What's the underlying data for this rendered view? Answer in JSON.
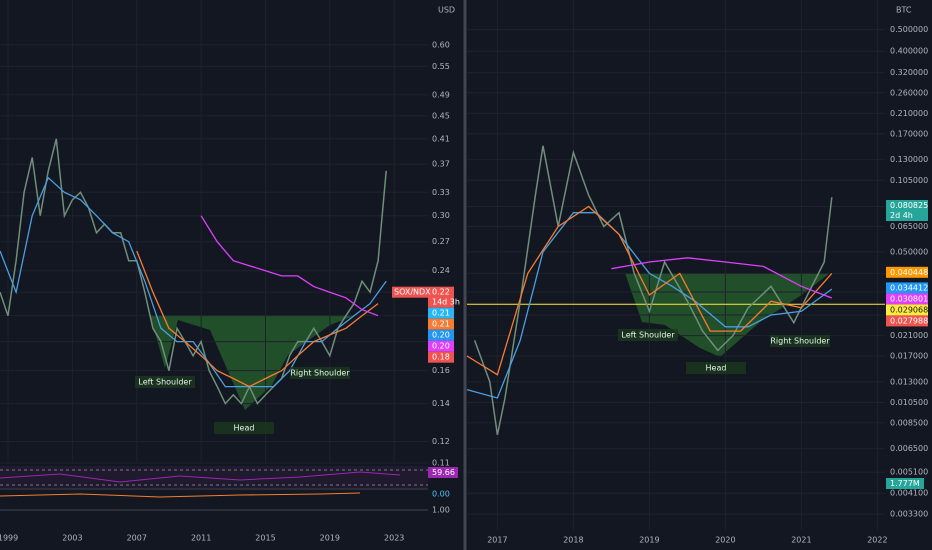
{
  "chart_data": [
    {
      "type": "line",
      "log_scale": true,
      "currency": "USD",
      "xlim": [
        1998.5,
        2025.1
      ],
      "ylim": [
        0.11,
        0.72
      ],
      "xticks": [
        1999,
        2003,
        2007,
        2011,
        2015,
        2019,
        2023
      ],
      "yticks": [
        0.11,
        0.12,
        0.14,
        0.16,
        0.18,
        {
          "value": 0.2,
          "label": "0.20"
        },
        0.22,
        0.24,
        0.27,
        {
          "value": 0.3,
          "label": "0.30"
        },
        0.33,
        0.37,
        0.41,
        0.45,
        0.49,
        0.55,
        {
          "value": 0.6,
          "label": "0.60"
        }
      ],
      "annotations": [
        "Left Shoulder",
        "Head",
        "Right Shoulder"
      ],
      "series": [
        {
          "color": "#6f8f7a",
          "x": [
            1998.5,
            1999,
            1999.5,
            2000,
            2000.5,
            2001,
            2001.5,
            2002,
            2002.5,
            2003,
            2003.5,
            2004,
            2004.5,
            2005,
            2005.5,
            2006,
            2006.5,
            2007,
            2007.5,
            2008,
            2008.5,
            2009,
            2009.5,
            2010,
            2010.5,
            2011,
            2011.5,
            2012,
            2012.5,
            2013,
            2013.5,
            2014,
            2014.5,
            2015,
            2015.5,
            2016,
            2016.5,
            2017,
            2017.5,
            2018,
            2018.5,
            2019,
            2019.5,
            2020,
            2020.5,
            2021,
            2021.5,
            2022,
            2022.5
          ],
          "values": [
            0.22,
            0.2,
            0.25,
            0.33,
            0.38,
            0.3,
            0.36,
            0.41,
            0.3,
            0.32,
            0.33,
            0.31,
            0.28,
            0.29,
            0.28,
            0.28,
            0.25,
            0.25,
            0.22,
            0.19,
            0.18,
            0.16,
            0.19,
            0.18,
            0.17,
            0.18,
            0.16,
            0.15,
            0.14,
            0.145,
            0.14,
            0.15,
            0.14,
            0.145,
            0.15,
            0.155,
            0.17,
            0.18,
            0.18,
            0.19,
            0.18,
            0.17,
            0.19,
            0.2,
            0.21,
            0.23,
            0.22,
            0.25,
            0.36
          ]
        },
        {
          "color": "#4a9fe0",
          "x": [
            1998.5,
            1999.5,
            2000.5,
            2001.5,
            2002.5,
            2003.5,
            2004.5,
            2005.5,
            2006.5,
            2007.5,
            2008.5,
            2009.5,
            2010.5,
            2011.5,
            2012.5,
            2013.5,
            2014.5,
            2015.5,
            2016.5,
            2017.5,
            2018.5,
            2019.5,
            2020.5,
            2021.5,
            2022.5
          ],
          "values": [
            0.26,
            0.22,
            0.3,
            0.35,
            0.33,
            0.32,
            0.3,
            0.28,
            0.27,
            0.23,
            0.19,
            0.18,
            0.18,
            0.165,
            0.15,
            0.15,
            0.15,
            0.15,
            0.16,
            0.18,
            0.18,
            0.19,
            0.2,
            0.21,
            0.23
          ]
        },
        {
          "color": "#f57c32",
          "x": [
            2007,
            2008,
            2009,
            2010,
            2011,
            2012,
            2013,
            2014,
            2015,
            2016,
            2017,
            2018,
            2019,
            2020,
            2021,
            2022
          ],
          "values": [
            0.26,
            0.22,
            0.19,
            0.18,
            0.17,
            0.16,
            0.155,
            0.15,
            0.155,
            0.16,
            0.17,
            0.18,
            0.185,
            0.19,
            0.2,
            0.21
          ]
        },
        {
          "color": "#e040fb",
          "x": [
            2011,
            2012,
            2013,
            2014,
            2015,
            2016,
            2017,
            2018,
            2019,
            2020,
            2021,
            2022
          ],
          "values": [
            0.3,
            0.27,
            0.25,
            0.245,
            0.24,
            0.235,
            0.235,
            0.225,
            0.22,
            0.215,
            0.205,
            0.2
          ]
        }
      ],
      "tags": [
        {
          "value": 0.22,
          "label": "0.22",
          "color": "#ef5350",
          "name": "SOX/NDX",
          "sublabel": "14d 3h"
        },
        {
          "value": 0.21,
          "label": "0.21",
          "color": "#29b6f6"
        },
        {
          "value": 0.21,
          "label": "0.21",
          "color": "#f57c32"
        },
        {
          "value": 0.2,
          "label": "0.20",
          "color": "#2196f3"
        },
        {
          "value": 0.2,
          "label": "0.20",
          "color": "#e040fb"
        },
        {
          "value": 0.18,
          "label": "0.18",
          "color": "#ef5350"
        }
      ],
      "panes": {
        "rsi": "59.66",
        "macd": "0.00",
        "tick": "1.00"
      }
    },
    {
      "type": "line",
      "log_scale": true,
      "currency": "BTC",
      "xlim": [
        2016.6,
        2022.1
      ],
      "ylim": [
        0.0028,
        0.68
      ],
      "xticks": [
        2017,
        2018,
        2019,
        2020,
        2021,
        2022
      ],
      "yticks": [
        {
          "value": 0.0033,
          "label": "0.003300"
        },
        {
          "value": 0.0041,
          "label": "0.004100"
        },
        {
          "value": 0.0051,
          "label": "0.005100"
        },
        {
          "value": 0.0065,
          "label": "0.006500"
        },
        {
          "value": 0.0085,
          "label": "0.008500"
        },
        {
          "value": 0.0105,
          "label": "0.010500"
        },
        {
          "value": 0.013,
          "label": "0.013000"
        },
        {
          "value": 0.017,
          "label": "0.017000"
        },
        {
          "value": 0.021,
          "label": "0.021000"
        },
        {
          "value": 0.026,
          "label": "0.026000"
        },
        {
          "value": 0.033,
          "label": "0.033000"
        },
        {
          "value": 0.04,
          "label": "0.040000"
        },
        {
          "value": 0.05,
          "label": "0.050000"
        },
        {
          "value": 0.065,
          "label": "0.065000"
        },
        {
          "value": 0.08,
          "label": "0.080000"
        },
        {
          "value": 0.105,
          "label": "0.105000"
        },
        {
          "value": 0.13,
          "label": "0.130000"
        },
        {
          "value": 0.17,
          "label": "0.170000"
        },
        {
          "value": 0.21,
          "label": "0.210000"
        },
        {
          "value": 0.26,
          "label": "0.260000"
        },
        {
          "value": 0.32,
          "label": "0.320000"
        },
        {
          "value": 0.4,
          "label": "0.400000"
        },
        {
          "value": 0.5,
          "label": "0.500000"
        }
      ],
      "annotations": [
        "Left Shoulder",
        "Head",
        "Right Shoulder"
      ],
      "series": [
        {
          "color": "#6f8f7a",
          "x": [
            2016.7,
            2016.9,
            2017,
            2017.1,
            2017.3,
            2017.5,
            2017.6,
            2017.8,
            2018,
            2018.2,
            2018.4,
            2018.6,
            2018.8,
            2019,
            2019.2,
            2019.5,
            2019.7,
            2019.9,
            2020.1,
            2020.3,
            2020.6,
            2020.9,
            2021.1,
            2021.3,
            2021.4
          ],
          "values": [
            0.02,
            0.013,
            0.0075,
            0.011,
            0.03,
            0.09,
            0.15,
            0.065,
            0.14,
            0.09,
            0.065,
            0.075,
            0.04,
            0.027,
            0.045,
            0.03,
            0.022,
            0.018,
            0.021,
            0.028,
            0.035,
            0.024,
            0.033,
            0.045,
            0.088
          ]
        },
        {
          "color": "#4a9fe0",
          "x": [
            2016.6,
            2017,
            2017.3,
            2017.6,
            2018,
            2018.3,
            2018.6,
            2019,
            2019.3,
            2019.6,
            2020,
            2020.3,
            2020.6,
            2021,
            2021.4
          ],
          "values": [
            0.012,
            0.011,
            0.02,
            0.05,
            0.075,
            0.075,
            0.06,
            0.04,
            0.035,
            0.03,
            0.023,
            0.023,
            0.026,
            0.027,
            0.034
          ]
        },
        {
          "color": "#f57c32",
          "x": [
            2016.6,
            2017,
            2017.4,
            2017.8,
            2018.2,
            2018.6,
            2019,
            2019.4,
            2019.8,
            2020.2,
            2020.6,
            2021,
            2021.4
          ],
          "values": [
            0.017,
            0.014,
            0.04,
            0.065,
            0.08,
            0.06,
            0.032,
            0.04,
            0.022,
            0.022,
            0.03,
            0.028,
            0.04
          ]
        },
        {
          "color": "#e040fb",
          "x": [
            2018.5,
            2019,
            2019.5,
            2020,
            2020.5,
            2021,
            2021.4
          ],
          "values": [
            0.042,
            0.045,
            0.047,
            0.045,
            0.043,
            0.035,
            0.031
          ]
        }
      ],
      "hline": {
        "value": 0.029068,
        "color": "#ffeb3b"
      },
      "tags": [
        {
          "value": 0.080825,
          "label": "0.080825",
          "color": "#26a69a",
          "sublabel": "2d 4h"
        },
        {
          "value": 0.040448,
          "label": "0.040448",
          "color": "#ff9800"
        },
        {
          "value": 0.034412,
          "label": "0.034412",
          "color": "#2196f3"
        },
        {
          "value": 0.030801,
          "label": "0.030801",
          "color": "#e040fb"
        },
        {
          "value": 0.029068,
          "label": "0.029068",
          "color": "#ffeb3b"
        },
        {
          "value": 0.027988,
          "label": "0.027988",
          "color": "#ef5350"
        }
      ],
      "volume_label": "1.777M"
    }
  ]
}
